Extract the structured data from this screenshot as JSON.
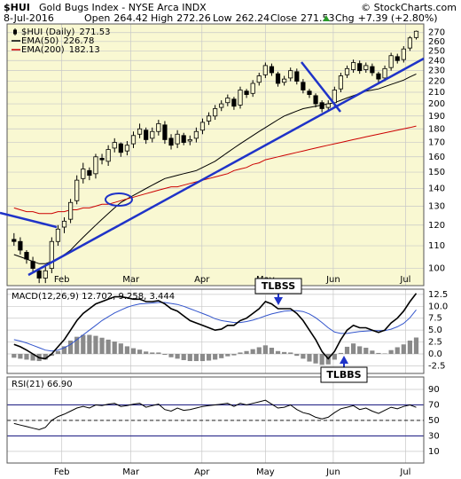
{
  "header": {
    "symbol": "$HUI",
    "name": "Gold Bugs Index - NYSE Arca INDX",
    "source": "© StockCharts.com",
    "date": "8-Jul-2016",
    "quote": [
      {
        "label": "Open",
        "value": 264.42
      },
      {
        "label": "High",
        "value": 272.26
      },
      {
        "label": "Low",
        "value": 262.24
      },
      {
        "label": "Close",
        "value": 271.53
      },
      {
        "label": "Chg",
        "value": "+7.39 (+2.80%)"
      }
    ]
  },
  "chart_data": [
    {
      "type": "candlestick",
      "name": "$HUI (Daily)",
      "color": "#000000",
      "background": "#f9f8d2",
      "log_scale": true,
      "xlim": [
        -1.1,
        65.2
      ],
      "xticks": [
        {
          "value": 7.6,
          "label": "Feb"
        },
        {
          "value": 18.6,
          "label": "Mar"
        },
        {
          "value": 29.9,
          "label": "Apr"
        },
        {
          "value": 40,
          "label": "May"
        },
        {
          "value": 50.8,
          "label": "Jun"
        },
        {
          "value": 62.3,
          "label": "Jul"
        }
      ],
      "ylim": [
        93,
        280
      ],
      "yticks": [
        100,
        110,
        120,
        130,
        140,
        150,
        160,
        170,
        180,
        190,
        200,
        210,
        220,
        230,
        240,
        250,
        260,
        270
      ],
      "grid": true,
      "open": [
        113,
        112,
        107,
        103,
        99,
        96,
        100,
        112,
        119,
        123,
        133,
        146,
        151,
        149,
        159,
        157,
        166,
        169,
        164,
        169,
        176,
        179,
        173,
        178,
        183,
        173,
        169,
        175,
        171,
        173,
        179,
        186,
        190,
        197,
        201,
        204,
        199,
        211,
        209,
        219,
        226,
        234,
        227,
        219,
        223,
        229,
        219,
        211,
        207,
        201,
        197,
        201,
        213,
        226,
        231,
        237,
        231,
        234,
        227,
        223,
        233,
        244,
        241,
        253,
        264.42
      ],
      "high": [
        116,
        114,
        108,
        105,
        100,
        101,
        114,
        120,
        124,
        134,
        148,
        156,
        153,
        162,
        162,
        168,
        173,
        170,
        171,
        178,
        184,
        181,
        181,
        187,
        186,
        176,
        179,
        177,
        175,
        181,
        188,
        193,
        199,
        203,
        208,
        206,
        215,
        213,
        221,
        228,
        238,
        237,
        229,
        225,
        233,
        232,
        222,
        213,
        209,
        203,
        203,
        215,
        228,
        235,
        241,
        240,
        238,
        237,
        229,
        235,
        248,
        247,
        255,
        266,
        272.26
      ],
      "low": [
        110,
        106,
        102,
        98,
        94,
        94,
        98,
        110,
        116,
        121,
        131,
        143,
        145,
        146,
        155,
        154,
        163,
        160,
        161,
        166,
        173,
        169,
        170,
        175,
        169,
        165,
        166,
        168,
        168,
        170,
        176,
        183,
        187,
        194,
        198,
        195,
        196,
        205,
        206,
        216,
        223,
        225,
        215,
        216,
        220,
        217,
        209,
        205,
        197,
        193,
        194,
        198,
        210,
        223,
        228,
        227,
        228,
        225,
        219,
        220,
        230,
        237,
        238,
        250,
        262.24
      ],
      "close": [
        112,
        108,
        104,
        100,
        96,
        99,
        112,
        118,
        122,
        132,
        145,
        152,
        148,
        160,
        158,
        165,
        170,
        163,
        168,
        175,
        180,
        172,
        178,
        184,
        172,
        168,
        176,
        170,
        172,
        178,
        185,
        190,
        196,
        200,
        205,
        198,
        212,
        208,
        218,
        225,
        235,
        228,
        218,
        222,
        230,
        220,
        212,
        208,
        200,
        196,
        200,
        212,
        225,
        232,
        238,
        230,
        235,
        228,
        222,
        232,
        245,
        240,
        252,
        264,
        271.53
      ],
      "series": [
        {
          "name": "EMA(50)",
          "color": "#000000",
          "values": [
            106,
            105,
            104,
            103,
            102,
            102,
            103,
            104,
            106,
            108,
            111,
            114,
            117,
            120,
            123,
            126,
            129,
            132,
            134,
            136,
            138,
            140,
            142,
            144,
            146,
            147,
            148,
            149,
            150,
            151,
            153,
            155,
            157,
            160,
            163,
            166,
            169,
            172,
            175,
            178,
            181,
            184,
            187,
            190,
            192,
            194,
            196,
            197,
            198,
            199,
            200,
            201,
            203,
            205,
            207,
            209,
            211,
            212,
            213,
            215,
            217,
            219,
            221,
            224,
            226.78
          ]
        },
        {
          "name": "EMA(200)",
          "color": "#cc0000",
          "values": [
            129,
            128,
            127,
            127,
            126,
            126,
            126,
            127,
            127,
            128,
            128,
            129,
            129,
            130,
            131,
            131,
            132,
            133,
            134,
            135,
            136,
            137,
            138,
            139,
            140,
            141,
            141,
            142,
            143,
            144,
            145,
            146,
            147,
            148,
            149,
            151,
            152,
            153,
            155,
            156,
            158,
            159,
            160,
            161,
            162,
            163,
            164,
            165,
            166,
            167,
            168,
            169,
            170,
            171,
            172,
            173,
            174,
            175,
            176,
            177,
            178,
            179,
            180,
            181,
            182.13
          ]
        }
      ]
    },
    {
      "type": "macd",
      "legend": "MACD(12,26,9) 12.702, 9.258, 3.444",
      "background": "#ffffff",
      "ylim": [
        -4.1,
        13.6
      ],
      "yticks": [
        12.5,
        {
          "value": 10,
          "label": "10.0"
        },
        7.5,
        {
          "value": 5,
          "label": "5.0"
        },
        2.5,
        {
          "value": 0,
          "label": "0.0"
        },
        -2.5
      ],
      "grid": true,
      "series": [
        {
          "color": "#000000",
          "values": [
            2,
            1.5,
            0.8,
            0,
            -0.8,
            -1,
            0,
            1.5,
            3,
            5,
            7,
            8.5,
            9.5,
            10.5,
            11,
            11.5,
            12,
            12,
            11.8,
            11.5,
            11.5,
            11,
            11,
            11.2,
            10.5,
            9.5,
            9,
            8,
            7,
            6.5,
            6,
            5.5,
            5,
            5.2,
            6,
            6,
            7,
            7.5,
            8.5,
            9.5,
            11,
            10.5,
            9.5,
            9.5,
            9.5,
            8.5,
            7,
            5,
            3,
            0.5,
            -1,
            0.5,
            3,
            5,
            6,
            5.5,
            5.5,
            5,
            4.5,
            5,
            6.5,
            7.5,
            9,
            11,
            12.702
          ]
        },
        {
          "color": "#3355cc",
          "values": [
            3,
            2.7,
            2.3,
            1.8,
            1.3,
            0.8,
            0.6,
            0.8,
            1.3,
            2,
            3,
            4,
            5,
            6,
            7,
            7.8,
            8.6,
            9.2,
            9.8,
            10.2,
            10.5,
            10.6,
            10.7,
            10.8,
            10.8,
            10.6,
            10.4,
            10,
            9.5,
            9,
            8.5,
            8,
            7.4,
            7,
            6.8,
            6.6,
            6.6,
            6.8,
            7.1,
            7.5,
            8,
            8.4,
            8.7,
            9,
            9.1,
            9.1,
            8.9,
            8.4,
            7.6,
            6.6,
            5.5,
            4.6,
            4.3,
            4.3,
            4.5,
            4.7,
            4.8,
            4.9,
            4.9,
            4.9,
            5.2,
            5.7,
            6.4,
            7.6,
            9.258
          ]
        }
      ],
      "histogram": {
        "color": "#8a8a8a",
        "values": [
          -0.8,
          -1,
          -1.2,
          -1.4,
          -1.5,
          -1.2,
          -0.4,
          0.6,
          1.6,
          2.8,
          3.6,
          4,
          4,
          3.8,
          3.4,
          3,
          2.6,
          2.2,
          1.6,
          1.2,
          0.9,
          0.5,
          0.3,
          0.3,
          -0.2,
          -0.7,
          -1,
          -1.3,
          -1.5,
          -1.5,
          -1.5,
          -1.4,
          -1.2,
          -0.9,
          -0.5,
          -0.3,
          0.3,
          0.6,
          1,
          1.4,
          1.8,
          1.3,
          0.6,
          0.4,
          0.3,
          -0.4,
          -1,
          -1.6,
          -2,
          -2.3,
          -2.2,
          -1.2,
          0.2,
          1.5,
          2.2,
          1.6,
          1.3,
          0.7,
          0.2,
          0.1,
          0.8,
          1.4,
          2,
          2.8,
          3.444
        ]
      },
      "annotations": [
        {
          "text": "TLBSS"
        },
        {
          "text": "TLBBS"
        }
      ]
    },
    {
      "type": "rsi",
      "legend": "RSI(21) 66.90",
      "background": "#ffffff",
      "color": "#000000",
      "ylim": [
        -5,
        106
      ],
      "yticks": [
        90,
        70,
        50,
        30,
        10
      ],
      "grid": true,
      "bands": [
        70,
        30
      ],
      "band_color": "#2a2a8a",
      "midline": 50,
      "values": [
        46,
        44,
        42,
        40,
        38,
        41,
        50,
        55,
        58,
        62,
        66,
        68,
        66,
        70,
        69,
        71,
        72,
        68,
        69,
        71,
        72,
        67,
        69,
        71,
        64,
        62,
        66,
        63,
        64,
        66,
        68,
        69,
        70,
        71,
        72,
        68,
        72,
        70,
        72,
        74,
        76,
        71,
        66,
        67,
        70,
        64,
        60,
        58,
        54,
        52,
        54,
        60,
        65,
        67,
        69,
        64,
        66,
        62,
        59,
        63,
        67,
        65,
        68,
        70,
        66.9
      ]
    }
  ]
}
